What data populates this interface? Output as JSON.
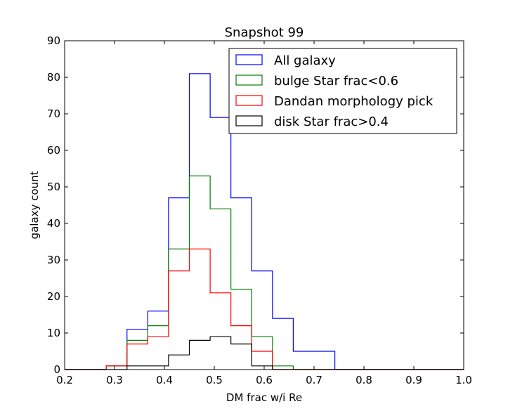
{
  "chart_data": {
    "type": "histogram-step",
    "title": "Snapshot 99",
    "xlabel": "DM frac w/i Re",
    "ylabel": "galaxy count",
    "xlim": [
      0.2,
      1.0
    ],
    "ylim": [
      0,
      90
    ],
    "xticks": [
      "0.2",
      "0.3",
      "0.4",
      "0.5",
      "0.6",
      "0.7",
      "0.8",
      "0.9",
      "1.0"
    ],
    "yticks": [
      "0",
      "10",
      "20",
      "30",
      "40",
      "50",
      "60",
      "70",
      "80",
      "90"
    ],
    "xtick_values": [
      0.2,
      0.3,
      0.4,
      0.5,
      0.6,
      0.7,
      0.8,
      0.9,
      1.0
    ],
    "ytick_values": [
      0,
      10,
      20,
      30,
      40,
      50,
      60,
      70,
      80,
      90
    ],
    "bin_edges": [
      0.2,
      0.2417,
      0.2833,
      0.325,
      0.3667,
      0.4083,
      0.45,
      0.4917,
      0.5333,
      0.575,
      0.6167,
      0.6583,
      0.7,
      0.7417,
      0.7833,
      0.825,
      0.8667,
      0.9083,
      0.95,
      1.0
    ],
    "legend_position": "upper-right",
    "grid": false,
    "series": [
      {
        "name": "All galaxy",
        "color": "#0000ff",
        "counts": [
          0,
          0,
          1,
          11,
          16,
          47,
          81,
          69,
          47,
          27,
          14,
          5,
          5,
          0,
          0,
          0,
          0,
          0,
          0
        ]
      },
      {
        "name": "bulge Star frac<0.6",
        "color": "#008000",
        "counts": [
          0,
          0,
          1,
          8,
          12,
          33,
          53,
          44,
          22,
          9,
          1,
          0,
          0,
          0,
          0,
          0,
          0,
          0,
          0
        ]
      },
      {
        "name": "Dandan morphology pick",
        "color": "#ff0000",
        "counts": [
          0,
          0,
          1,
          7,
          9,
          27,
          33,
          21,
          12,
          5,
          0,
          0,
          0,
          0,
          0,
          0,
          0,
          0,
          0
        ]
      },
      {
        "name": "disk Star frac>0.4",
        "color": "#000000",
        "counts": [
          0,
          0,
          0,
          1,
          1,
          4,
          8,
          9,
          7,
          1,
          0,
          0,
          0,
          0,
          0,
          0,
          0,
          0,
          0
        ]
      }
    ]
  }
}
